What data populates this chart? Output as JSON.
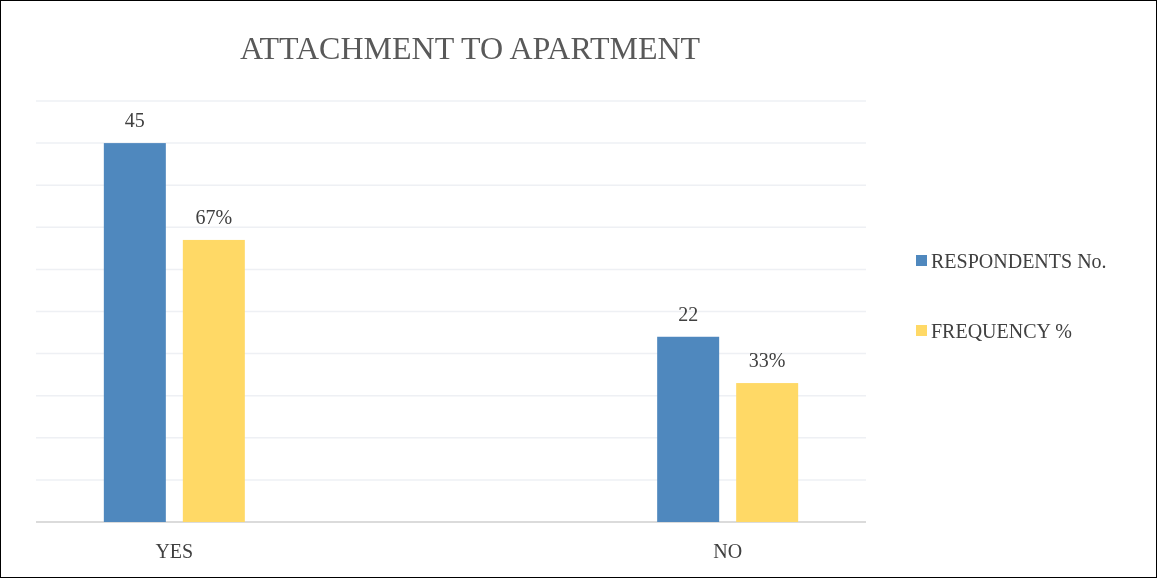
{
  "chart_data": {
    "type": "bar",
    "title": "ATTACHMENT TO APARTMENT",
    "categories": [
      "YES",
      "NO"
    ],
    "series": [
      {
        "name": "RESPONDENTS No.",
        "color": "#4f88be",
        "values": [
          45,
          22
        ],
        "value_labels": [
          "45",
          "22"
        ]
      },
      {
        "name": "FREQUENCY %",
        "color": "#ffd966",
        "values": [
          67,
          33
        ],
        "value_labels": [
          "67%",
          "33%"
        ],
        "axis": "y2"
      }
    ],
    "ylim": [
      0,
      50
    ],
    "yticks": [
      {
        "value": 0,
        "label": null
      },
      {
        "value": 5,
        "label": null
      },
      {
        "value": 10,
        "label": null
      },
      {
        "value": 15,
        "label": null
      },
      {
        "value": 20,
        "label": null
      },
      {
        "value": 25,
        "label": null
      },
      {
        "value": 30,
        "label": null
      },
      {
        "value": 35,
        "label": null
      },
      {
        "value": 40,
        "label": null
      },
      {
        "value": 45,
        "label": null
      },
      {
        "value": 50,
        "label": null
      }
    ],
    "y2lim": [
      0,
      100
    ],
    "grid": "y",
    "tick_labels": "x",
    "legend": "right"
  }
}
